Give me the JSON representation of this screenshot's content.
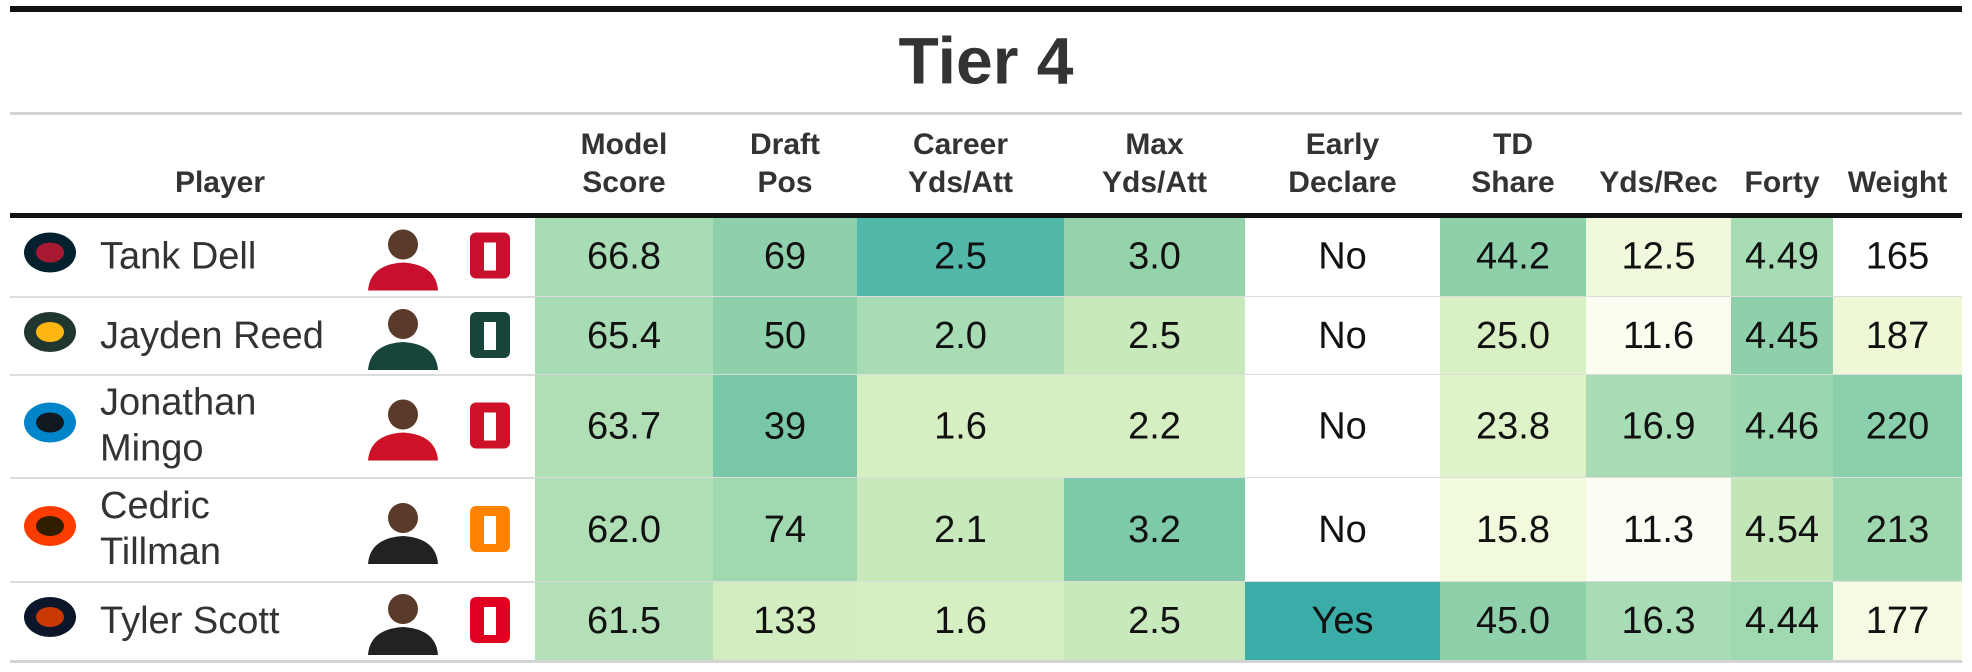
{
  "title": "Tier 4",
  "table": {
    "columns": [
      {
        "lines": [
          "Player"
        ]
      },
      {
        "lines": [
          "Model",
          "Score"
        ]
      },
      {
        "lines": [
          "Draft",
          "Pos"
        ]
      },
      {
        "lines": [
          "Career",
          "Yds/Att"
        ]
      },
      {
        "lines": [
          "Max",
          "Yds/Att"
        ]
      },
      {
        "lines": [
          "Early",
          "Declare"
        ]
      },
      {
        "lines": [
          "TD",
          "Share"
        ]
      },
      {
        "lines": [
          "Yds/Rec"
        ]
      },
      {
        "lines": [
          "Forty"
        ]
      },
      {
        "lines": [
          "Weight"
        ]
      }
    ],
    "rows": [
      {
        "player": [
          "Tank Dell"
        ],
        "cells": [
          "66.8",
          "69",
          "2.5",
          "3.0",
          "No",
          "44.2",
          "12.5",
          "4.49",
          "165"
        ]
      },
      {
        "player": [
          "Jayden Reed"
        ],
        "cells": [
          "65.4",
          "50",
          "2.0",
          "2.5",
          "No",
          "25.0",
          "11.6",
          "4.45",
          "187"
        ]
      },
      {
        "player": [
          "Jonathan",
          "Mingo"
        ],
        "cells": [
          "63.7",
          "39",
          "1.6",
          "2.2",
          "No",
          "23.8",
          "16.9",
          "4.46",
          "220"
        ]
      },
      {
        "player": [
          "Cedric",
          "Tillman"
        ],
        "cells": [
          "62.0",
          "74",
          "2.1",
          "3.2",
          "No",
          "15.8",
          "11.3",
          "4.54",
          "213"
        ]
      },
      {
        "player": [
          "Tyler Scott"
        ],
        "cells": [
          "61.5",
          "133",
          "1.6",
          "2.5",
          "Yes",
          "45.0",
          "16.3",
          "4.44",
          "177"
        ]
      }
    ]
  }
}
